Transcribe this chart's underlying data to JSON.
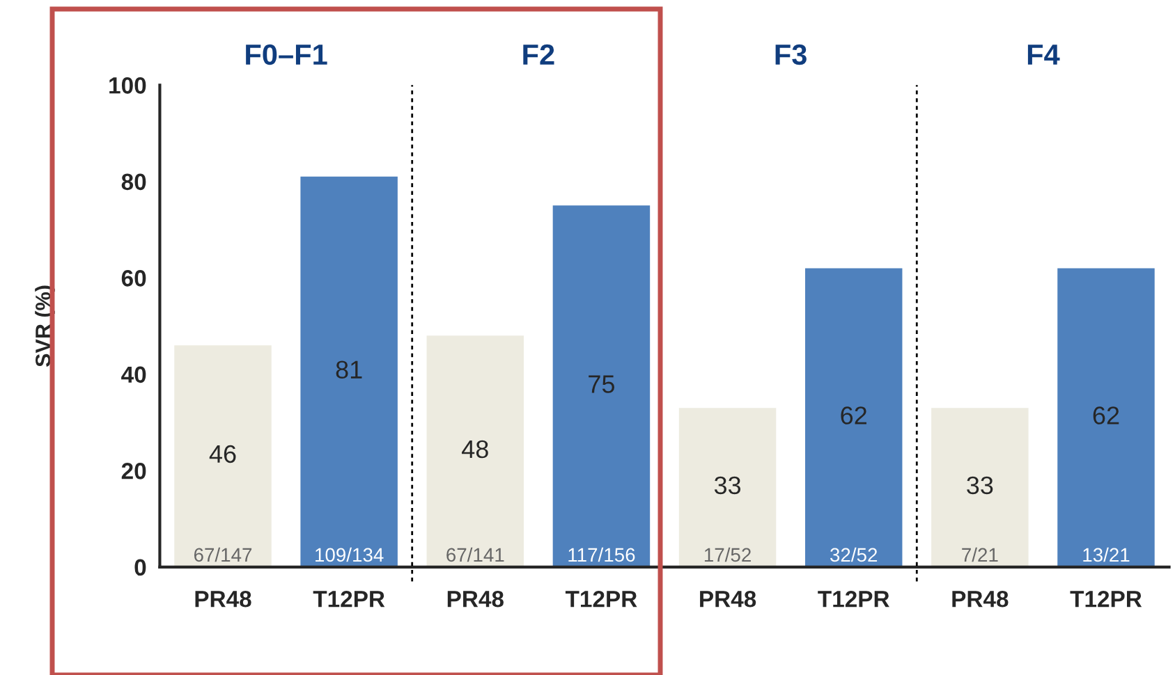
{
  "chart_data": {
    "type": "bar",
    "ylabel": "SVR (%)",
    "categories": [
      "PR48",
      "T12PR",
      "PR48",
      "T12PR",
      "PR48",
      "T12PR",
      "PR48",
      "T12PR"
    ],
    "values": [
      46,
      81,
      48,
      75,
      33,
      62,
      33,
      62
    ],
    "colors": [
      "#edebe0",
      "#4f81bd",
      "#edebe0",
      "#4f81bd",
      "#edebe0",
      "#4f81bd",
      "#edebe0",
      "#4f81bd"
    ],
    "data_labels": true,
    "ylim": [
      0,
      100
    ],
    "yticks": [
      0,
      20,
      40,
      60,
      80,
      100
    ],
    "grid": false,
    "legend": false,
    "annotations": [
      "F0–F1",
      "F2",
      "F3",
      "F4",
      "67/147",
      "109/134",
      "67/141",
      "117/156",
      "17/52",
      "32/52",
      "7/21",
      "13/21"
    ]
  }
}
